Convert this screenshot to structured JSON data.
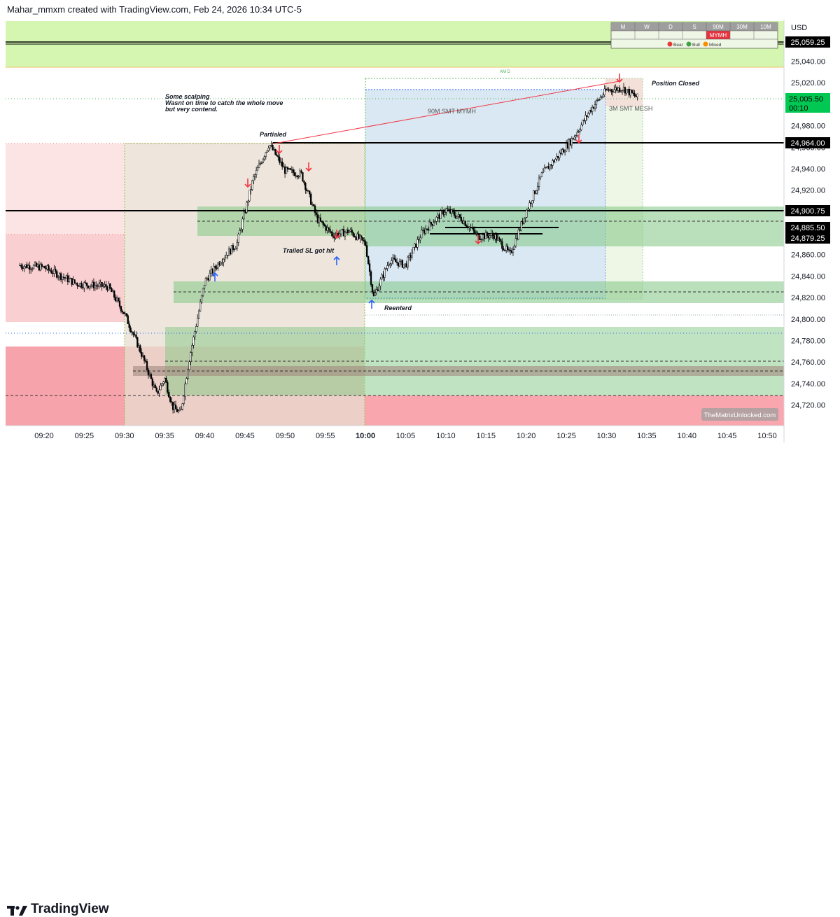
{
  "header": {
    "text": "Mahar_mmxm created with TradingView.com, Feb 24, 2026 10:34 UTC-5"
  },
  "footer": {
    "brand": "TradingView"
  },
  "currency": "USD",
  "watermark": "TheMatrixUnlocked.com",
  "timeframe_table": {
    "columns": [
      "M",
      "W",
      "D",
      "S",
      "90M",
      "30M",
      "10M"
    ],
    "highlight": "MYMH",
    "legend": [
      "Bear",
      "Bull",
      "Mixed"
    ]
  },
  "price_labels": {
    "top_line": "25,059.25",
    "last_price": "25,005.50",
    "countdown": "00:10",
    "line_24964": "24,964.00",
    "line_24900": "24,900.75",
    "line_24885": "24,885.50",
    "line_24879": "24,879.25"
  },
  "y_ticks": [
    "25,040.00",
    "25,020.00",
    "24,980.00",
    "24,960.00",
    "24,940.00",
    "24,920.00",
    "24,880.00",
    "24,860.00",
    "24,840.00",
    "24,820.00",
    "24,800.00",
    "24,780.00",
    "24,760.00",
    "24,740.00",
    "24,720.00"
  ],
  "x_ticks": [
    "09:20",
    "09:25",
    "09:30",
    "09:35",
    "09:40",
    "09:45",
    "09:50",
    "09:55",
    "10:00",
    "10:05",
    "10:10",
    "10:15",
    "10:20",
    "10:25",
    "10:30",
    "10:35",
    "10:40",
    "10:45",
    "10:50"
  ],
  "annotations": {
    "note_line1": "Some scalping",
    "note_line2": "Wasnt on time to catch the whole move",
    "note_line3": "but very contend.",
    "partialed": "Partialed",
    "trailed": "Trailed SL got hit",
    "reentered": "Reenterd",
    "position_closed": "Position Closed",
    "smt_90m": "90M SMT MYMH",
    "smt_3m": "3M SMT MESH",
    "am_d": "AM D"
  },
  "colors": {
    "bull_zone": "#4caf50",
    "bear_zone": "#f23645",
    "range_box": "#2962ff",
    "arrow_sell": "#f23645",
    "arrow_buy": "#2962ff",
    "top_band": "#ccf5a3"
  },
  "chart_data": {
    "type": "candlestick",
    "symbol_currency": "USD",
    "time_range": [
      "09:17",
      "10:34"
    ],
    "ylim": [
      24710,
      25075
    ],
    "grid": false,
    "key_levels": [
      25059.25,
      24964.0,
      24900.75,
      24885.5,
      24879.25
    ],
    "last_price": 25005.5,
    "path": [
      [
        "09:17",
        24850
      ],
      [
        "09:20",
        24848
      ],
      [
        "09:24",
        24833
      ],
      [
        "09:28",
        24830
      ],
      [
        "09:30",
        24805
      ],
      [
        "09:32",
        24770
      ],
      [
        "09:34",
        24730
      ],
      [
        "09:35",
        24745
      ],
      [
        "09:36",
        24718
      ],
      [
        "09:37",
        24712
      ],
      [
        "09:38",
        24760
      ],
      [
        "09:40",
        24835
      ],
      [
        "09:42",
        24855
      ],
      [
        "09:44",
        24870
      ],
      [
        "09:46",
        24930
      ],
      [
        "09:48",
        24963
      ],
      [
        "09:50",
        24938
      ],
      [
        "09:52",
        24935
      ],
      [
        "09:54",
        24893
      ],
      [
        "09:56",
        24878
      ],
      [
        "09:58",
        24882
      ],
      [
        "10:00",
        24870
      ],
      [
        "10:01",
        24820
      ],
      [
        "10:03",
        24855
      ],
      [
        "10:05",
        24850
      ],
      [
        "10:07",
        24880
      ],
      [
        "10:10",
        24902
      ],
      [
        "10:12",
        24893
      ],
      [
        "10:14",
        24877
      ],
      [
        "10:16",
        24878
      ],
      [
        "10:18",
        24860
      ],
      [
        "10:20",
        24900
      ],
      [
        "10:22",
        24935
      ],
      [
        "10:24",
        24952
      ],
      [
        "10:26",
        24970
      ],
      [
        "10:28",
        24995
      ],
      [
        "10:30",
        25013
      ],
      [
        "10:32",
        25015
      ],
      [
        "10:34",
        25005.5
      ]
    ]
  }
}
